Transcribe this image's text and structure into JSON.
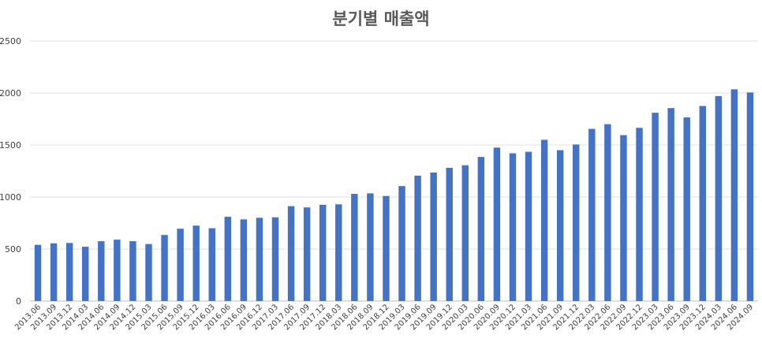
{
  "chart_data": {
    "type": "bar",
    "title": "분기별 매출액",
    "xlabel": "",
    "ylabel": "",
    "ylim": [
      0,
      2500
    ],
    "yticks": [
      0,
      500,
      1000,
      1500,
      2000,
      2500
    ],
    "grid": true,
    "bar_color": "#4472c4",
    "categories": [
      "2013.06",
      "2013.09",
      "2013.12",
      "2014.03",
      "2014.06",
      "2014.09",
      "2014.12",
      "2015.03",
      "2015.06",
      "2015.09",
      "2015.12",
      "2016.03",
      "2016.06",
      "2016.09",
      "2016.12",
      "2017.03",
      "2017.06",
      "2017.09",
      "2017.12",
      "2018.03",
      "2018.06",
      "2018.09",
      "2018.12",
      "2019.03",
      "2019.06",
      "2019.09",
      "2019.12",
      "2020.03",
      "2020.06",
      "2020.09",
      "2020.12",
      "2021.03",
      "2021.06",
      "2021.09",
      "2021.12",
      "2022.03",
      "2022.06",
      "2022.09",
      "2022.12",
      "2023.03",
      "2023.06",
      "2023.09",
      "2023.12",
      "2024.03",
      "2024.06",
      "2024.09"
    ],
    "values": [
      540,
      555,
      558,
      522,
      575,
      590,
      575,
      548,
      635,
      695,
      725,
      700,
      810,
      785,
      800,
      805,
      912,
      900,
      925,
      930,
      1030,
      1035,
      1010,
      1105,
      1205,
      1235,
      1280,
      1305,
      1385,
      1475,
      1420,
      1435,
      1550,
      1450,
      1505,
      1655,
      1700,
      1595,
      1665,
      1810,
      1855,
      1765,
      1875,
      1970,
      2035,
      2005
    ]
  }
}
